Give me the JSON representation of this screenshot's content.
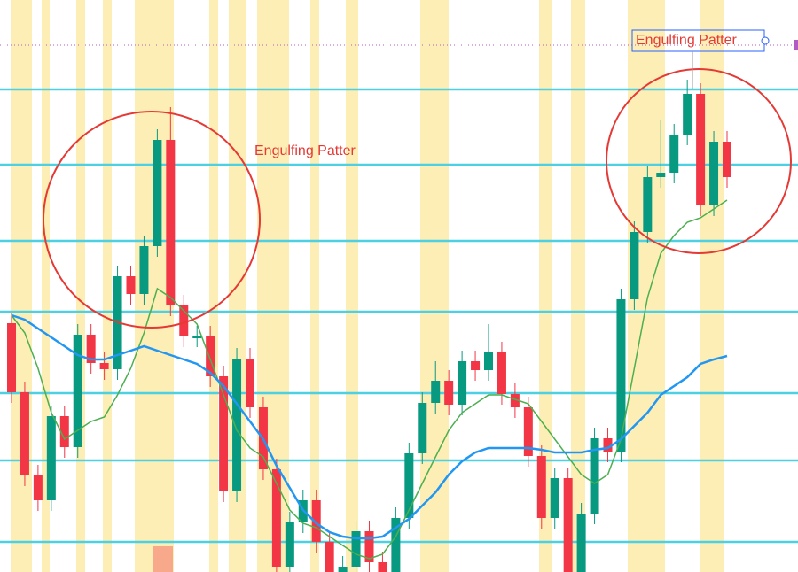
{
  "chart_data": {
    "type": "candlestick",
    "ylim": [
      0,
      646
    ],
    "open": [
      281,
      203,
      109,
      81,
      176,
      141,
      268,
      236,
      229,
      334,
      314,
      368,
      488,
      301,
      266,
      266,
      221,
      91,
      241,
      186,
      116,
      6,
      56,
      81,
      34,
      0,
      6,
      46,
      11,
      0,
      61,
      134,
      191,
      216,
      189,
      238,
      228,
      248,
      201,
      186,
      131,
      61,
      106,
      0,
      66,
      151,
      136,
      308,
      384,
      446,
      451,
      494,
      540,
      414,
      486
    ],
    "high": [
      293,
      215,
      121,
      188,
      188,
      280,
      280,
      248,
      346,
      346,
      380,
      500,
      525,
      313,
      278,
      278,
      233,
      253,
      253,
      198,
      128,
      68,
      93,
      93,
      46,
      18,
      58,
      58,
      23,
      73,
      146,
      203,
      238,
      228,
      250,
      250,
      280,
      260,
      213,
      198,
      143,
      118,
      118,
      78,
      163,
      163,
      320,
      396,
      458,
      510,
      506,
      556,
      552,
      498,
      498
    ],
    "low": [
      191,
      97,
      69,
      69,
      129,
      129,
      224,
      217,
      217,
      302,
      302,
      356,
      289,
      254,
      254,
      209,
      79,
      79,
      174,
      104,
      -6,
      -6,
      44,
      22,
      -12,
      -12,
      -6,
      -1,
      -12,
      -12,
      49,
      122,
      179,
      177,
      177,
      216,
      216,
      189,
      174,
      119,
      49,
      49,
      -12,
      -12,
      54,
      124,
      124,
      296,
      372,
      434,
      439,
      482,
      402,
      402,
      434
    ],
    "close": [
      203,
      109,
      81,
      176,
      141,
      268,
      236,
      229,
      334,
      314,
      368,
      488,
      301,
      266,
      266,
      221,
      91,
      241,
      186,
      116,
      6,
      56,
      81,
      34,
      0,
      6,
      46,
      11,
      0,
      61,
      134,
      191,
      216,
      189,
      238,
      228,
      248,
      201,
      186,
      131,
      61,
      106,
      0,
      66,
      151,
      136,
      308,
      384,
      446,
      451,
      494,
      540,
      414,
      486,
      446
    ],
    "up_color": "#089981",
    "down_color": "#f23645",
    "lines": [
      {
        "color": "#4caf50",
        "values": [
          290,
          270,
          230,
          180,
          150,
          160,
          170,
          175,
          200,
          230,
          270,
          320,
          310,
          295,
          280,
          240,
          200,
          160,
          140,
          130,
          100,
          70,
          55,
          50,
          40,
          30,
          20,
          15,
          20,
          40,
          70,
          100,
          130,
          160,
          180,
          190,
          200,
          200,
          195,
          190,
          170,
          150,
          130,
          110,
          100,
          110,
          150,
          230,
          310,
          360,
          380,
          395,
          400,
          410,
          420
        ]
      },
      {
        "color": "#2196f3",
        "values": [
          290,
          285,
          275,
          265,
          255,
          245,
          240,
          240,
          245,
          250,
          255,
          250,
          245,
          240,
          235,
          225,
          210,
          190,
          170,
          150,
          120,
          95,
          70,
          55,
          45,
          40,
          38,
          38,
          40,
          50,
          60,
          75,
          90,
          110,
          125,
          135,
          140,
          140,
          140,
          140,
          138,
          135,
          135,
          135,
          138,
          140,
          150,
          165,
          180,
          200,
          210,
          220,
          235,
          240,
          244
        ]
      }
    ],
    "levels": [
      545,
      460,
      374,
      294,
      202,
      126,
      34
    ],
    "level_color": "#4dd0e1",
    "annotations": [
      "Engulfing Patter",
      "Engulfing Patter"
    ]
  }
}
